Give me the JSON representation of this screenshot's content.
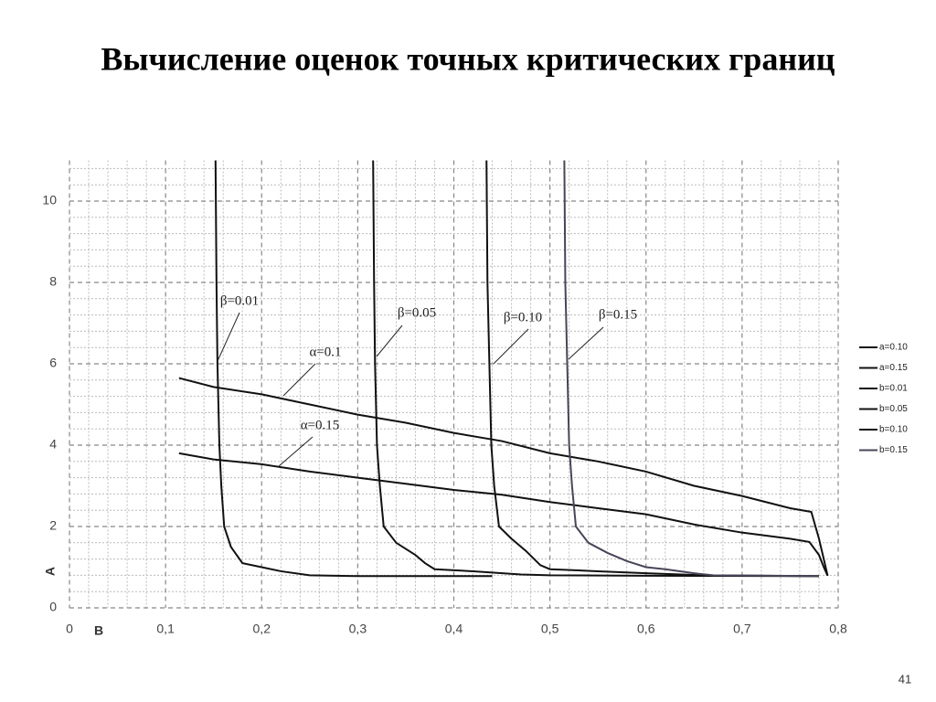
{
  "title": "Вычисление оценок точных критических границ",
  "page_number": "41",
  "chart_data": {
    "type": "line",
    "xlabel": "B",
    "ylabel": "A",
    "xlim": [
      0,
      0.8
    ],
    "ylim": [
      0,
      11
    ],
    "xticks": [
      0,
      {
        "value": 0.1,
        "label": "0,1"
      },
      {
        "value": 0.2,
        "label": "0,2"
      },
      {
        "value": 0.3,
        "label": "0,3"
      },
      {
        "value": 0.4,
        "label": "0,4"
      },
      {
        "value": 0.5,
        "label": "0,5"
      },
      {
        "value": 0.6,
        "label": "0,6"
      },
      {
        "value": 0.7,
        "label": "0,7"
      },
      {
        "value": 0.8,
        "label": "0,8"
      }
    ],
    "yticks": [
      0,
      2,
      4,
      6,
      8,
      10
    ],
    "grid": true,
    "legend": "right",
    "series": [
      {
        "name": "a=0.10",
        "color": "#111111",
        "x": [
          0.114,
          0.15,
          0.2,
          0.25,
          0.3,
          0.35,
          0.4,
          0.45,
          0.5,
          0.55,
          0.6,
          0.65,
          0.7,
          0.75,
          0.772,
          0.78,
          0.785,
          0.789
        ],
        "values": [
          5.65,
          5.43,
          5.25,
          5.0,
          4.75,
          4.55,
          4.3,
          4.1,
          3.8,
          3.6,
          3.35,
          3.0,
          2.75,
          2.45,
          2.36,
          1.7,
          1.2,
          0.79
        ]
      },
      {
        "name": "a=0.15",
        "color": "#111111",
        "x": [
          0.114,
          0.15,
          0.2,
          0.25,
          0.3,
          0.35,
          0.4,
          0.45,
          0.5,
          0.55,
          0.6,
          0.65,
          0.7,
          0.75,
          0.77,
          0.78,
          0.785,
          0.789
        ],
        "values": [
          3.8,
          3.65,
          3.53,
          3.35,
          3.2,
          3.05,
          2.9,
          2.78,
          2.6,
          2.45,
          2.3,
          2.05,
          1.85,
          1.7,
          1.62,
          1.3,
          1.0,
          0.79
        ]
      },
      {
        "name": "b=0.01",
        "color": "#111111",
        "x": [
          0.152,
          0.153,
          0.154,
          0.156,
          0.158,
          0.161,
          0.168,
          0.18,
          0.2,
          0.22,
          0.25,
          0.3,
          0.44
        ],
        "values": [
          11,
          8,
          6,
          4,
          3,
          2,
          1.5,
          1.1,
          1.0,
          0.9,
          0.8,
          0.78,
          0.78
        ]
      },
      {
        "name": "b=0.05",
        "color": "#111111",
        "x": [
          0.316,
          0.317,
          0.318,
          0.32,
          0.323,
          0.327,
          0.34,
          0.36,
          0.37,
          0.38,
          0.42,
          0.47,
          0.5,
          0.6,
          0.78
        ],
        "values": [
          11,
          8,
          6,
          4,
          3,
          2,
          1.6,
          1.3,
          1.1,
          0.95,
          0.9,
          0.82,
          0.8,
          0.79,
          0.78
        ]
      },
      {
        "name": "b=0.10",
        "color": "#111111",
        "x": [
          0.434,
          0.435,
          0.437,
          0.439,
          0.442,
          0.447,
          0.46,
          0.475,
          0.49,
          0.5,
          0.55,
          0.6,
          0.66,
          0.78
        ],
        "values": [
          11,
          8,
          6,
          4,
          3,
          2,
          1.7,
          1.4,
          1.05,
          0.95,
          0.9,
          0.85,
          0.8,
          0.78
        ]
      },
      {
        "name": "b=0.15",
        "color": "#4a4458",
        "x": [
          0.515,
          0.516,
          0.518,
          0.52,
          0.523,
          0.527,
          0.54,
          0.56,
          0.58,
          0.6,
          0.62,
          0.65,
          0.67,
          0.78
        ],
        "values": [
          11,
          8,
          6,
          4,
          3,
          2,
          1.6,
          1.35,
          1.15,
          1.0,
          0.95,
          0.85,
          0.8,
          0.78
        ]
      }
    ],
    "annotations": [
      "β=0.01",
      "α=0.1",
      "β=0.05",
      "β=0.10",
      "α=0.15",
      "β=0.15"
    ]
  }
}
